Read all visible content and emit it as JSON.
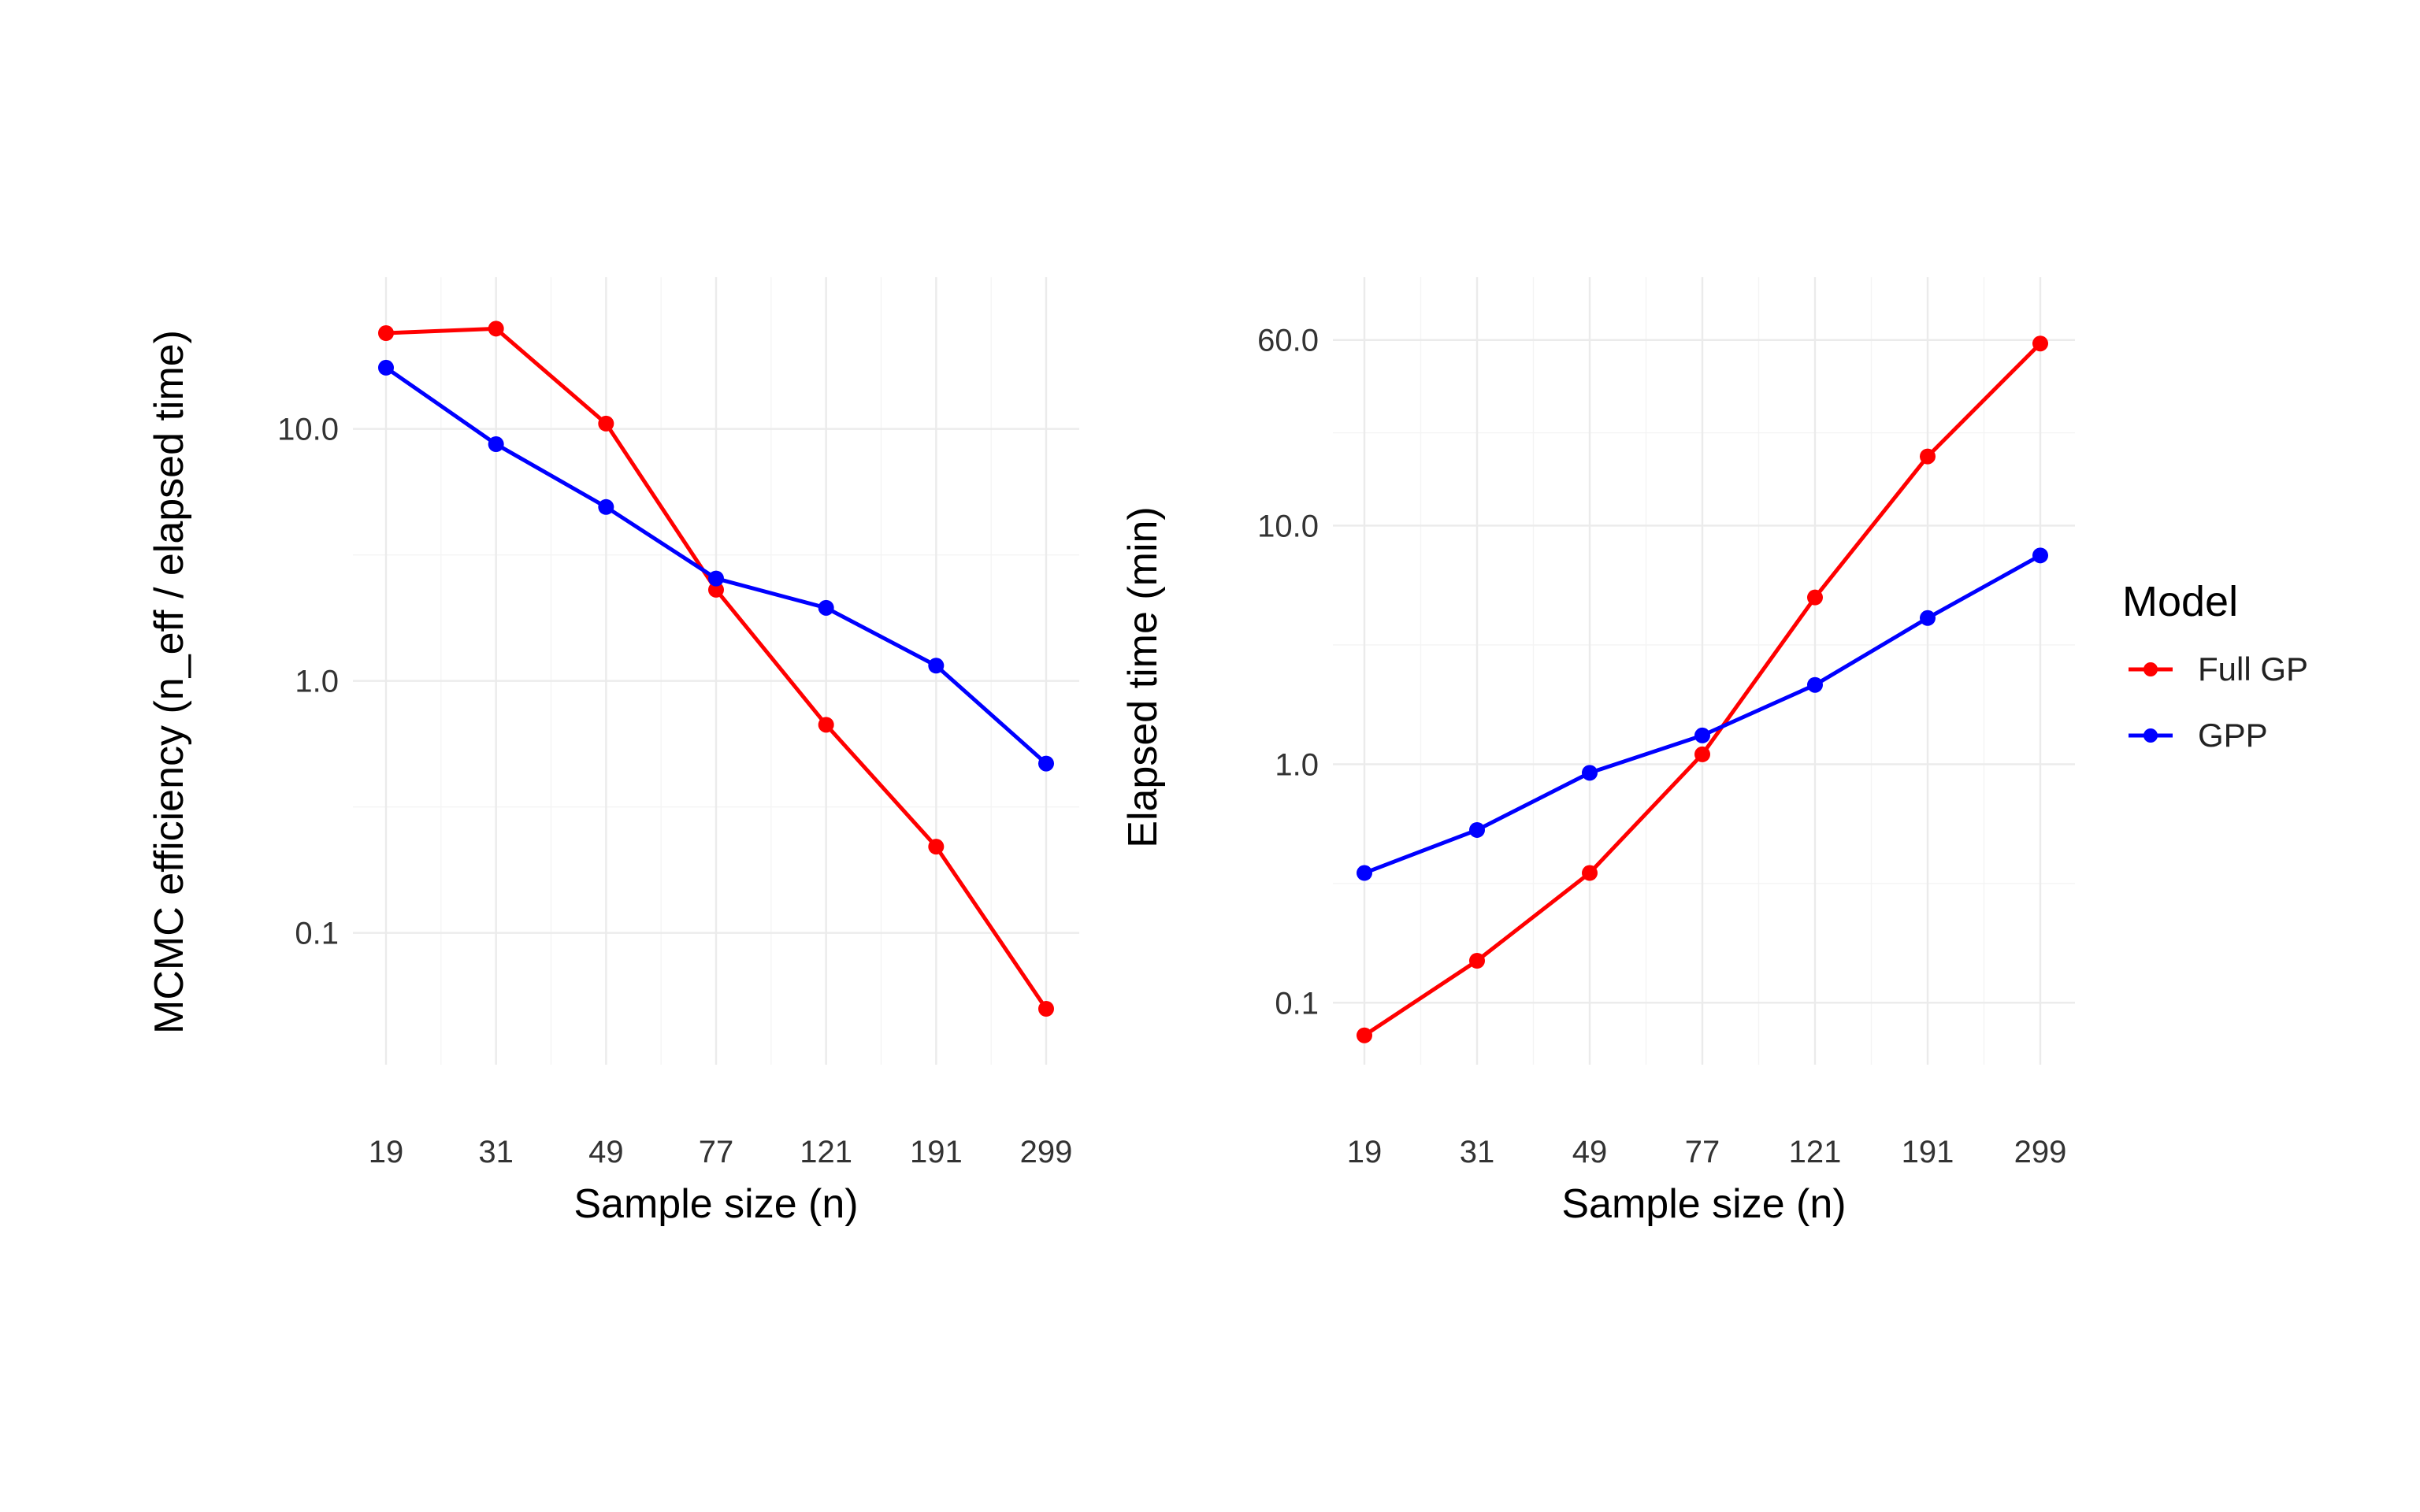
{
  "chart_data": [
    {
      "type": "line",
      "x": [
        19,
        31,
        49,
        77,
        121,
        191,
        299
      ],
      "xlabel": "Sample size (n)",
      "ylabel": "MCMC efficiency (n_eff / elapsed time)",
      "yscale": "log",
      "ylim": [
        0.03,
        40
      ],
      "yticks": [
        0.1,
        1.0,
        10.0
      ],
      "ytick_labels": [
        "0.1",
        "1.0",
        "10.0"
      ],
      "xtick_labels": [
        "19",
        "31",
        "49",
        "77",
        "121",
        "191",
        "299"
      ],
      "grid": true,
      "series": [
        {
          "name": "Full GP",
          "color": "#ff0000",
          "values": [
            24.0,
            25.0,
            10.5,
            2.3,
            0.67,
            0.22,
            0.05
          ]
        },
        {
          "name": "GPP",
          "color": "#0000ff",
          "values": [
            17.5,
            8.7,
            4.9,
            2.55,
            1.95,
            1.15,
            0.47
          ]
        }
      ]
    },
    {
      "type": "line",
      "x": [
        19,
        31,
        49,
        77,
        121,
        191,
        299
      ],
      "xlabel": "Sample size (n)",
      "ylabel": "Elapsed time (min)",
      "yscale": "log",
      "ylim": [
        0.055,
        110
      ],
      "yticks": [
        0.1,
        1.0,
        10.0,
        60.0
      ],
      "ytick_labels": [
        "0.1",
        "1.0",
        "10.0",
        "60.0"
      ],
      "xtick_labels": [
        "19",
        "31",
        "49",
        "77",
        "121",
        "191",
        "299"
      ],
      "grid": true,
      "series": [
        {
          "name": "Full GP",
          "color": "#ff0000",
          "values": [
            0.073,
            0.15,
            0.35,
            1.1,
            5.0,
            19.5,
            58.0
          ]
        },
        {
          "name": "GPP",
          "color": "#0000ff",
          "values": [
            0.35,
            0.53,
            0.92,
            1.32,
            2.15,
            4.1,
            7.5
          ]
        }
      ]
    }
  ],
  "legend": {
    "title": "Model",
    "placement": "right",
    "items": [
      {
        "label": "Full GP",
        "color": "#ff0000"
      },
      {
        "label": "GPP",
        "color": "#0000ff"
      }
    ]
  }
}
